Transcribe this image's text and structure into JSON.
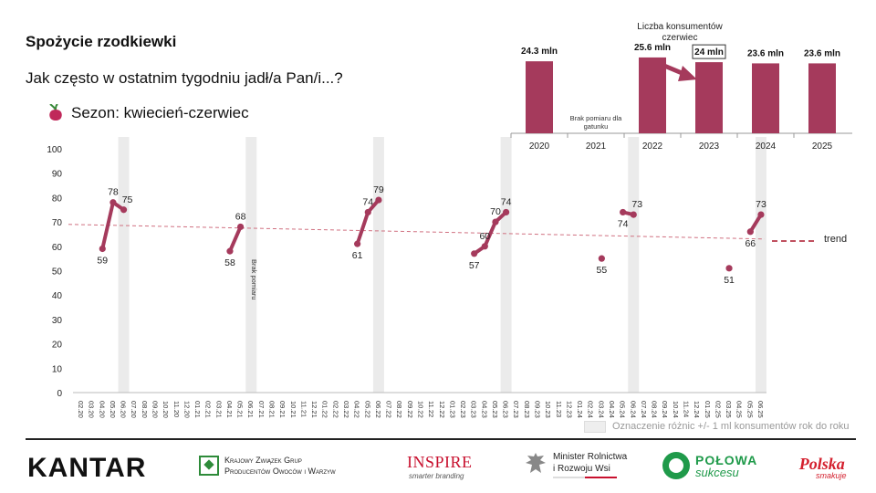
{
  "header": {
    "title": "Spożycie rzodkiewki",
    "subtitle": "Jak często w ostatnim tygodniu jadł/a Pan/i...?",
    "season": "Sezon: kwiecień-czerwiec"
  },
  "colors": {
    "series": "#a53a5c",
    "bar": "#a53a5c",
    "trend": "#d07080",
    "band": "#ebebeb"
  },
  "chart_data": [
    {
      "type": "line",
      "ylim": [
        0,
        100
      ],
      "yticks": [
        0,
        10,
        20,
        30,
        40,
        50,
        60,
        70,
        80,
        90,
        100
      ],
      "x": [
        "02.20",
        "03.20",
        "04.20",
        "05.20",
        "06.20",
        "07.20",
        "08.20",
        "09.20",
        "10.20",
        "11.20",
        "12.20",
        "01.21",
        "02.21",
        "03.21",
        "04.21",
        "05.21",
        "06.21",
        "07.21",
        "08.21",
        "09.21",
        "10.21",
        "11.21",
        "12.21",
        "01.22",
        "02.22",
        "03.22",
        "04.22",
        "05.22",
        "06.22",
        "07.22",
        "08.22",
        "09.22",
        "10.22",
        "11.22",
        "12.22",
        "01.23",
        "02.23",
        "03.23",
        "04.23",
        "05.23",
        "06.23",
        "07.23",
        "08.23",
        "09.23",
        "10.23",
        "11.23",
        "12.23",
        "01.24",
        "02.24",
        "03.24",
        "04.24",
        "05.24",
        "06.24",
        "07.24",
        "08.24",
        "09.24",
        "10.24",
        "11.24",
        "12.24",
        "01.25",
        "02.25",
        "03.25",
        "04.25",
        "05.25",
        "06.25"
      ],
      "segments": [
        [
          {
            "x": "04.20",
            "y": 59
          },
          {
            "x": "05.20",
            "y": 78
          },
          {
            "x": "06.20",
            "y": 75
          }
        ],
        [
          {
            "x": "04.21",
            "y": 58
          },
          {
            "x": "05.21",
            "y": 68
          }
        ],
        [
          {
            "x": "04.22",
            "y": 61
          },
          {
            "x": "05.22",
            "y": 74
          },
          {
            "x": "06.22",
            "y": 79
          }
        ],
        [
          {
            "x": "03.23",
            "y": 57
          },
          {
            "x": "04.23",
            "y": 60
          },
          {
            "x": "05.23",
            "y": 70
          },
          {
            "x": "06.23",
            "y": 74
          }
        ],
        [
          {
            "x": "03.24",
            "y": 55
          }
        ],
        [
          {
            "x": "05.24",
            "y": 74
          },
          {
            "x": "06.24",
            "y": 73
          }
        ],
        [
          {
            "x": "03.25",
            "y": 51
          }
        ],
        [
          {
            "x": "05.25",
            "y": 66
          },
          {
            "x": "06.25",
            "y": 73
          }
        ]
      ],
      "highlight_bands": [
        "06.20",
        "06.21",
        "06.22",
        "06.23",
        "06.24",
        "06.25"
      ],
      "annotation_rotated": {
        "at": "06.21",
        "text": "Brak pomiaru"
      },
      "trend": {
        "label": "trend",
        "from": {
          "x": "02.20",
          "y": 69
        },
        "to": {
          "x": "06.25",
          "y": 63
        }
      },
      "legend": {
        "band_label": "Oznaczenie różnic +/- 1 ml konsumentów rok do roku"
      },
      "grid": false
    },
    {
      "type": "bar",
      "title": "Liczba konsumentów czerwiec",
      "categories": [
        "2020",
        "2021",
        "2022",
        "2023",
        "2024",
        "2025"
      ],
      "values": [
        24.3,
        null,
        25.6,
        24.0,
        23.6,
        23.6
      ],
      "value_labels": [
        "24.3 mln",
        "",
        "25.6 mln",
        "24 mln",
        "23.6 mln",
        "23.6 mln"
      ],
      "missing_label": "Brak pomiaru dla gatunku",
      "highlight_index": 3,
      "ylim": [
        0,
        26.5
      ]
    }
  ],
  "footer": {
    "kantar": "KANTAR",
    "kzgp_line1": "Krajowy Związek Grup",
    "kzgp_line2": "Producentów Owoców i Warzyw",
    "inspire": "INSPIRE",
    "inspire_sub": "smarter branding",
    "minister_line1": "Minister Rolnictwa",
    "minister_line2": "i Rozwoju Wsi",
    "polowa_1": "POŁOWA",
    "polowa_2": "sukcesu",
    "polska_1": "Polska",
    "polska_2": "smakuje"
  }
}
